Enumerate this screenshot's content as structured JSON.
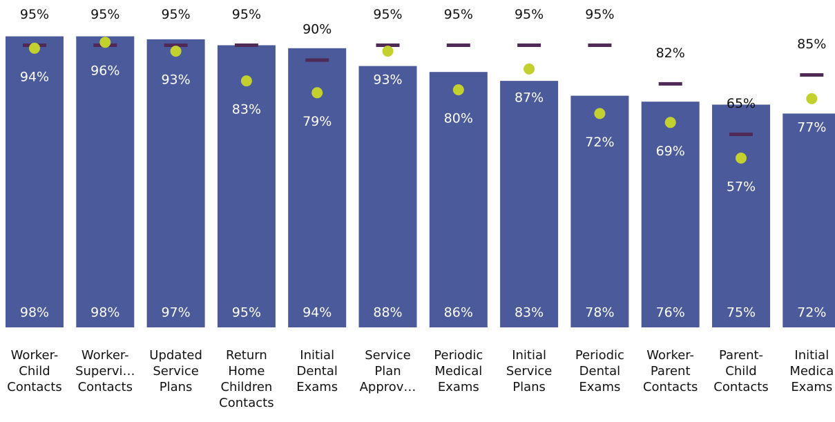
{
  "chart_data": {
    "type": "bar",
    "categories": [
      "Worker-\nChild\nContacts",
      "Worker-\nSupervi…\nContacts",
      "Updated\nService\nPlans",
      "Return\nHome\nChildren\nContacts",
      "Initial\nDental\nExams",
      "Service\nPlan\nApprov…",
      "Periodic\nMedical\nExams",
      "Initial\nService\nPlans",
      "Periodic\nDental\nExams",
      "Worker-\nParent\nContacts",
      "Parent-\nChild\nContacts",
      "Initial\nMedica\nExams"
    ],
    "series": [
      {
        "kind": "bar",
        "color": "#4a5a9a",
        "values": [
          98,
          98,
          97,
          95,
          94,
          88,
          86,
          83,
          78,
          76,
          75,
          72
        ],
        "value_labels": [
          "98%",
          "98%",
          "97%",
          "95%",
          "94%",
          "88%",
          "86%",
          "83%",
          "78%",
          "76%",
          "75%",
          "72%"
        ]
      },
      {
        "kind": "dash",
        "color": "#4f2a56",
        "values": [
          95,
          95,
          95,
          95,
          90,
          95,
          95,
          95,
          95,
          82,
          65,
          85
        ],
        "value_labels": [
          "95%",
          "95%",
          "95%",
          "95%",
          "90%",
          "95%",
          "95%",
          "95%",
          "95%",
          "82%",
          "65%",
          "85%"
        ]
      },
      {
        "kind": "dot",
        "color": "#c2d130",
        "values": [
          94,
          96,
          93,
          83,
          79,
          93,
          80,
          87,
          72,
          69,
          57,
          77
        ],
        "value_labels": [
          "94%",
          "96%",
          "93%",
          "83%",
          "79%",
          "93%",
          "80%",
          "87%",
          "72%",
          "69%",
          "57%",
          "77%"
        ]
      }
    ],
    "ylim": [
      0,
      100
    ]
  }
}
